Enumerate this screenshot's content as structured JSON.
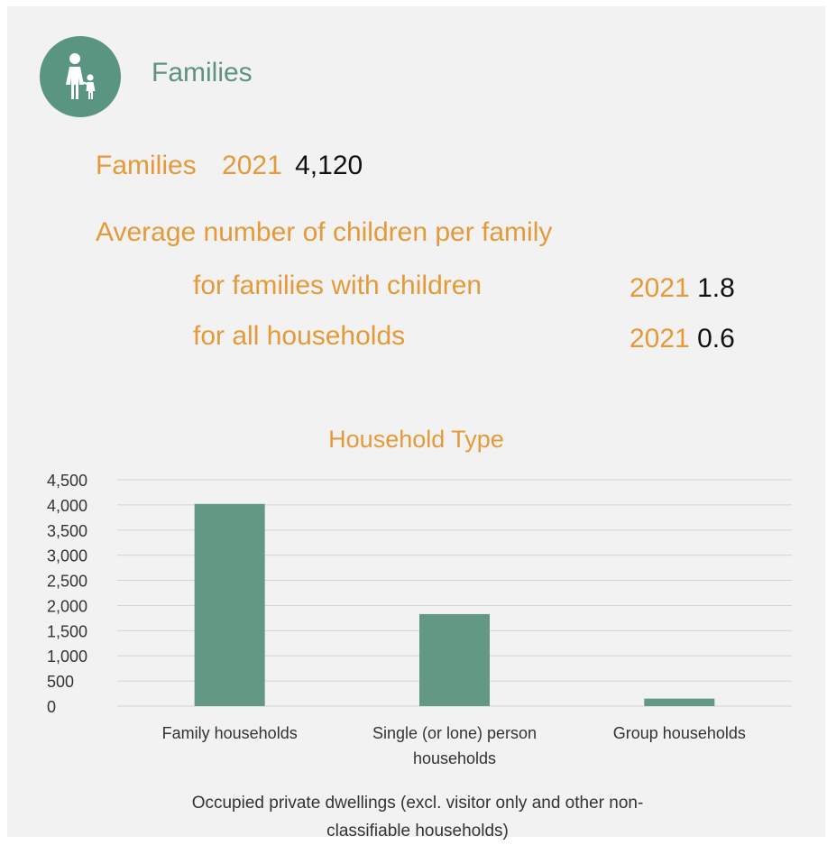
{
  "section": {
    "title": "Families",
    "icon": "family-parent-child-icon"
  },
  "families": {
    "label": "Families",
    "year": "2021",
    "value": "4,120"
  },
  "average_children": {
    "title": "Average number of children per family",
    "rows": [
      {
        "label": "for families with children",
        "year": "2021",
        "value": "1.8"
      },
      {
        "label": "for all households",
        "year": "2021",
        "value": "0.6"
      }
    ]
  },
  "colors": {
    "accent_orange": "#e59a3a",
    "teal": "#5a9582",
    "bar": "#639885",
    "panel_bg": "#f2f2f2"
  },
  "chart_data": {
    "type": "bar",
    "title": "Household Type",
    "categories": [
      "Family households",
      "Single (or lone) person households",
      "Group households"
    ],
    "category_lines": [
      [
        "Family households"
      ],
      [
        "Single (or lone) person",
        "households"
      ],
      [
        "Group households"
      ]
    ],
    "values": [
      4020,
      1830,
      150
    ],
    "ylim": [
      0,
      4500
    ],
    "yticks": [
      0,
      500,
      1000,
      1500,
      2000,
      2500,
      3000,
      3500,
      4000,
      4500
    ],
    "ytick_labels": [
      "0",
      "500",
      "1,000",
      "1,500",
      "2,000",
      "2,500",
      "3,000",
      "3,500",
      "4,000",
      "4,500"
    ],
    "xlabel": "Occupied private dwellings (excl. visitor only and other non-classifiable households)",
    "xlabel_lines": [
      "Occupied private dwellings (excl. visitor only and other non-",
      "classifiable households)"
    ],
    "ylabel": "",
    "grid": true,
    "legend": "none"
  }
}
